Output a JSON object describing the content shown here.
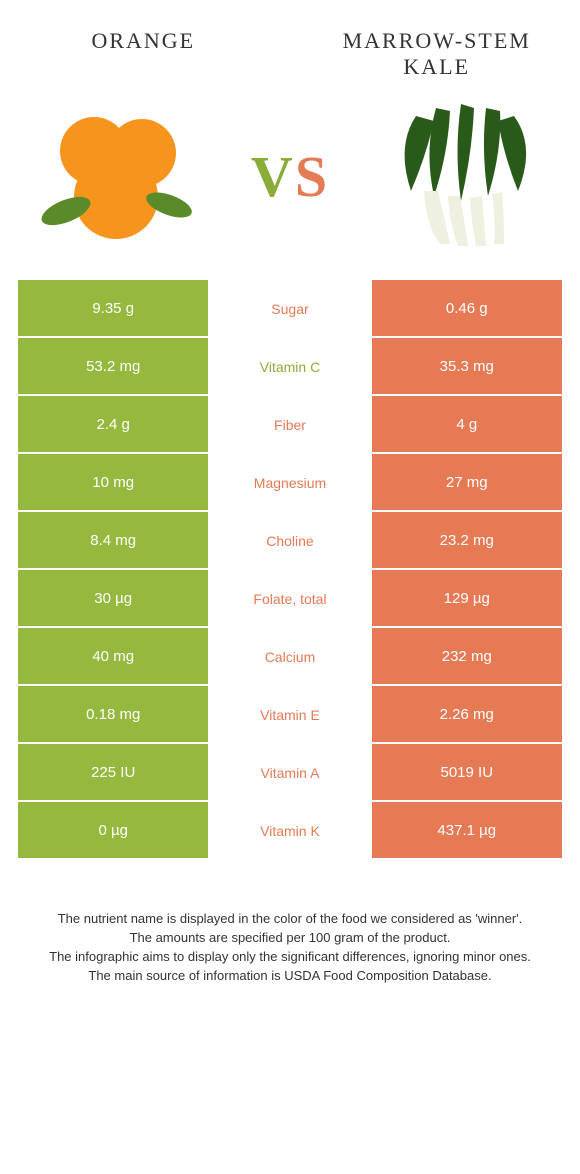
{
  "header": {
    "left_title": "ORANGE",
    "right_title": "MARROW-STEM KALE"
  },
  "vs": {
    "v": "V",
    "s": "S"
  },
  "colors": {
    "left": "#94b93e",
    "right": "#e57a55",
    "left_text": "#8aad3a",
    "right_text": "#e57a55"
  },
  "rows": [
    {
      "nutrient": "Sugar",
      "left": "9.35 g",
      "right": "0.46 g",
      "winner": "right"
    },
    {
      "nutrient": "Vitamin C",
      "left": "53.2 mg",
      "right": "35.3 mg",
      "winner": "left"
    },
    {
      "nutrient": "Fiber",
      "left": "2.4 g",
      "right": "4 g",
      "winner": "right"
    },
    {
      "nutrient": "Magnesium",
      "left": "10 mg",
      "right": "27 mg",
      "winner": "right"
    },
    {
      "nutrient": "Choline",
      "left": "8.4 mg",
      "right": "23.2 mg",
      "winner": "right"
    },
    {
      "nutrient": "Folate, total",
      "left": "30 µg",
      "right": "129 µg",
      "winner": "right"
    },
    {
      "nutrient": "Calcium",
      "left": "40 mg",
      "right": "232 mg",
      "winner": "right"
    },
    {
      "nutrient": "Vitamin E",
      "left": "0.18 mg",
      "right": "2.26 mg",
      "winner": "right"
    },
    {
      "nutrient": "Vitamin A",
      "left": "225 IU",
      "right": "5019 IU",
      "winner": "right"
    },
    {
      "nutrient": "Vitamin K",
      "left": "0 µg",
      "right": "437.1 µg",
      "winner": "right"
    }
  ],
  "footer": {
    "line1": "The nutrient name is displayed in the color of the food we considered as 'winner'.",
    "line2": "The amounts are specified per 100 gram of the product.",
    "line3": "The infographic aims to display only the significant differences, ignoring minor ones.",
    "line4": "The main source of information is USDA Food Composition Database."
  }
}
